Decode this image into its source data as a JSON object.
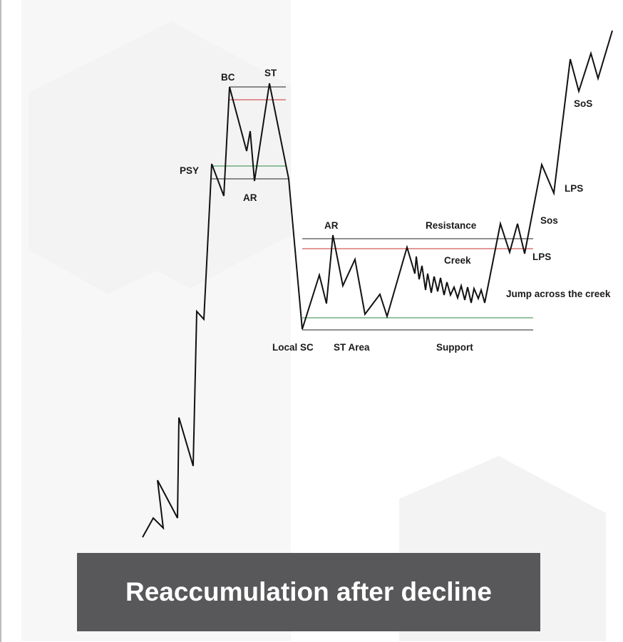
{
  "title": "Reaccumulation after decline",
  "labels": {
    "bc": "BC",
    "st_top": "ST",
    "psy": "PSY",
    "ar_top": "AR",
    "ar_range": "AR",
    "resistance": "Resistance",
    "creek": "Creek",
    "local_sc": "Local SC",
    "st_area": "ST Area",
    "support": "Support",
    "lps_low": "LPS",
    "lps_high": "LPS",
    "sos_low": "Sos",
    "sos_high": "SoS",
    "jump": "Jump across the creek"
  },
  "colors": {
    "price": "#111111",
    "level_black": "#222222",
    "level_red": "#c8322f",
    "level_green": "#2b8a3e",
    "banner": "#58585a"
  }
}
